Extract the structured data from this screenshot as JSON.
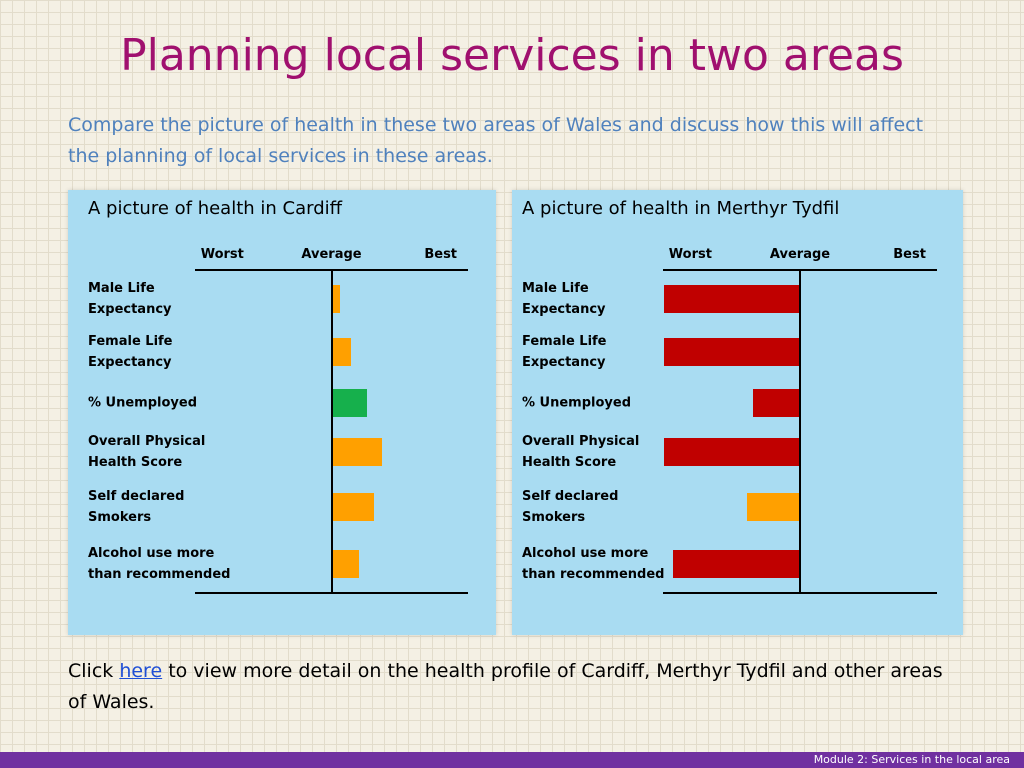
{
  "title": "Planning local services in two areas",
  "subtitle": "Compare the picture of health in these two areas of Wales and discuss how this will affect the planning of local services in these areas.",
  "note": {
    "before": "Click ",
    "link": "here",
    "after": " to view more detail on the health profile of Cardiff, Merthyr Tydfil and other areas of Wales."
  },
  "footer": "Module 2: Services in the local area",
  "chart_data": [
    {
      "type": "bar",
      "orientation": "horizontal",
      "title": "A picture of health in Cardiff",
      "categories": [
        "Male Life\nExpectancy",
        "Female Life\nExpectancy",
        "% Unemployed",
        "Overall Physical\nHealth Score",
        "Self declared\nSmokers",
        "Alcohol use more\nthan recommended"
      ],
      "values": [
        0.06,
        0.14,
        0.26,
        0.37,
        0.31,
        0.2
      ],
      "colors": [
        "#ffa000",
        "#ffa000",
        "#16b04c",
        "#ffa000",
        "#ffa000",
        "#ffa000"
      ],
      "xlim": [
        -1,
        1
      ],
      "xticks": [
        {
          "value": -0.8,
          "label": "Worst"
        },
        {
          "value": 0,
          "label": "Average"
        },
        {
          "value": 0.8,
          "label": "Best"
        }
      ]
    },
    {
      "type": "bar",
      "orientation": "horizontal",
      "title": "A picture of health in Merthyr Tydfil",
      "categories": [
        "Male Life\nExpectancy",
        "Female Life\nExpectancy",
        "% Unemployed",
        "Overall Physical\nHealth Score",
        "Self declared\nSmokers",
        "Alcohol use more\nthan recommended"
      ],
      "values": [
        -0.99,
        -0.99,
        -0.34,
        -0.99,
        -0.39,
        -0.93
      ],
      "colors": [
        "#c00000",
        "#c00000",
        "#c00000",
        "#c00000",
        "#ffa000",
        "#c00000"
      ],
      "xlim": [
        -1,
        1
      ],
      "xticks": [
        {
          "value": -0.8,
          "label": "Worst"
        },
        {
          "value": 0,
          "label": "Average"
        },
        {
          "value": 0.8,
          "label": "Best"
        }
      ]
    }
  ]
}
